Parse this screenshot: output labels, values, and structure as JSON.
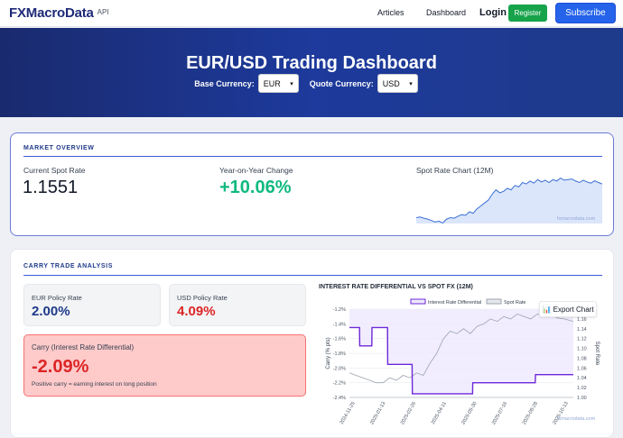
{
  "nav": {
    "brand": "FXMacroData",
    "api": "API",
    "articles": "Articles",
    "dashboard": "Dashboard",
    "login": "Login",
    "register": "Register",
    "subscribe": "Subscribe"
  },
  "hero": {
    "title": "EUR/USD Trading Dashboard",
    "base_label": "Base Currency:",
    "base_value": "EUR",
    "quote_label": "Quote Currency:",
    "quote_value": "USD"
  },
  "overview": {
    "section_title": "MARKET OVERVIEW",
    "spot_label": "Current Spot Rate",
    "spot_value": "1.1551",
    "yoy_label": "Year-on-Year Change",
    "yoy_value": "+10.06%",
    "chart_title": "Spot Rate Chart (12M)",
    "watermark": "fxmacrodata.com",
    "spark": [
      1.04,
      1.042,
      1.038,
      1.035,
      1.03,
      1.025,
      1.028,
      1.022,
      1.035,
      1.04,
      1.038,
      1.045,
      1.05,
      1.048,
      1.06,
      1.055,
      1.07,
      1.08,
      1.09,
      1.1,
      1.12,
      1.135,
      1.125,
      1.13,
      1.14,
      1.135,
      1.15,
      1.145,
      1.16,
      1.155,
      1.165,
      1.158,
      1.17,
      1.162,
      1.168,
      1.16,
      1.17,
      1.165,
      1.175,
      1.168,
      1.17,
      1.172,
      1.165,
      1.16,
      1.168,
      1.162,
      1.158,
      1.166,
      1.16,
      1.155
    ]
  },
  "carry": {
    "section_title": "CARRY TRADE ANALYSIS",
    "eur_label": "EUR Policy Rate",
    "eur_value": "2.00%",
    "usd_label": "USD Policy Rate",
    "usd_value": "4.09%",
    "carry_label": "Carry (Interest Rate Differential)",
    "carry_value": "-2.09%",
    "carry_note": "Positive carry = earning interest on long position",
    "chart_title": "INTEREST RATE DIFFERENTIAL VS SPOT FX (12M)",
    "export_label": "📊 Export Chart",
    "watermark": "fxmacrodata.com"
  },
  "chart_data": {
    "type": "line",
    "title": "INTEREST RATE DIFFERENTIAL VS SPOT FX (12M)",
    "ylabel": "Carry (% pts)",
    "y2label": "Spot Rate",
    "ylim": [
      -2.4,
      -1.2
    ],
    "y2lim": [
      1.0,
      1.18
    ],
    "yticks": [
      "-1.2%",
      "-1.4%",
      "-1.6%",
      "-1.8%",
      "-2.0%",
      "-2.2%",
      "-2.4%"
    ],
    "y2ticks": [
      "1.18",
      "1.16",
      "1.14",
      "1.12",
      "1.10",
      "1.08",
      "1.06",
      "1.04",
      "1.02",
      "1.00"
    ],
    "xticks": [
      "2024-11-25",
      "2025-01-13",
      "2025-02-26",
      "2025-04-11",
      "2025-05-30",
      "2025-07-16",
      "2025-08-28",
      "2025-10-13"
    ],
    "series": [
      {
        "name": "Interest Rate Differential",
        "color": "#6d28d9",
        "x": [
          0,
          0.045,
          0.046,
          0.1,
          0.101,
          0.17,
          0.171,
          0.28,
          0.281,
          0.55,
          0.551,
          0.83,
          0.831,
          1.0
        ],
        "values": [
          -1.45,
          -1.45,
          -1.7,
          -1.7,
          -1.45,
          -1.45,
          -1.95,
          -1.95,
          -2.35,
          -2.35,
          -2.2,
          -2.2,
          -2.09,
          -2.09
        ]
      },
      {
        "name": "Spot Rate",
        "color": "#9ca3af",
        "x": [
          0,
          0.03,
          0.06,
          0.09,
          0.12,
          0.15,
          0.18,
          0.21,
          0.24,
          0.27,
          0.3,
          0.33,
          0.36,
          0.39,
          0.42,
          0.45,
          0.48,
          0.51,
          0.54,
          0.57,
          0.6,
          0.63,
          0.66,
          0.69,
          0.72,
          0.75,
          0.78,
          0.81,
          0.84,
          0.87,
          0.9,
          0.93,
          0.96,
          1.0
        ],
        "values": [
          1.05,
          1.045,
          1.04,
          1.035,
          1.03,
          1.03,
          1.04,
          1.035,
          1.045,
          1.04,
          1.05,
          1.045,
          1.07,
          1.09,
          1.12,
          1.135,
          1.13,
          1.14,
          1.13,
          1.145,
          1.15,
          1.16,
          1.155,
          1.165,
          1.16,
          1.17,
          1.165,
          1.16,
          1.17,
          1.165,
          1.168,
          1.162,
          1.16,
          1.155
        ]
      }
    ]
  }
}
